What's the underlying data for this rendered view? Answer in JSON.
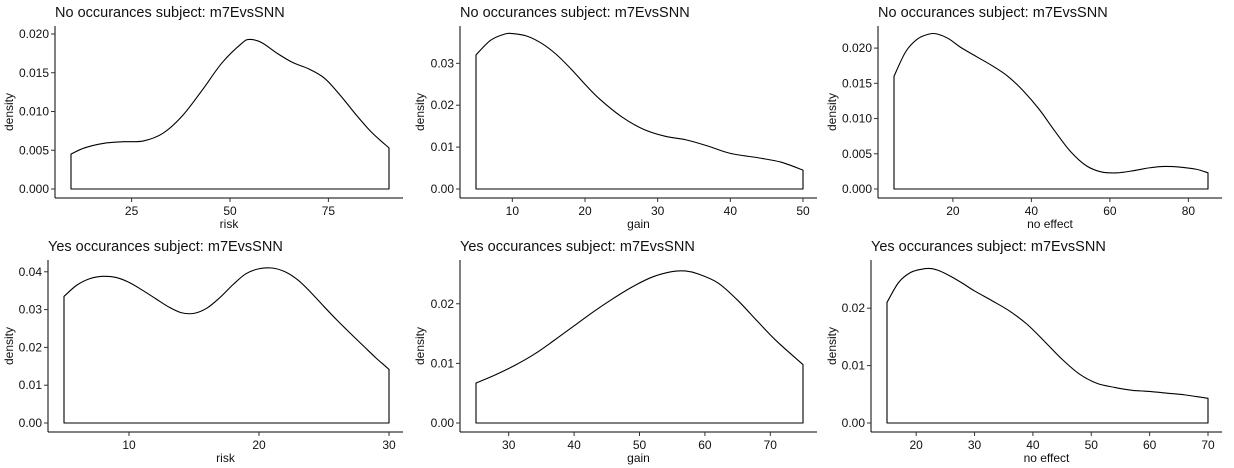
{
  "chart_data": [
    {
      "type": "area",
      "title": "No occurances subject:  m7EvsSNN",
      "xlabel": "risk",
      "ylabel": "density",
      "xlim": [
        9.6,
        90.4
      ],
      "ylim": [
        0,
        0.02
      ],
      "xticks": [
        25,
        50,
        75
      ],
      "yticks": [
        0.0,
        0.005,
        0.01,
        0.015,
        0.02
      ],
      "yticklabels": [
        "0.000",
        "0.005",
        "0.010",
        "0.015",
        "0.020"
      ],
      "x": [
        9.6,
        13,
        18,
        23,
        28,
        33,
        38,
        43,
        48,
        53,
        55,
        58,
        62,
        66,
        70,
        74,
        78,
        82,
        86,
        90.4
      ],
      "y": [
        0.0045,
        0.0053,
        0.0059,
        0.0061,
        0.0062,
        0.0072,
        0.0095,
        0.0128,
        0.0163,
        0.0188,
        0.0193,
        0.0189,
        0.0175,
        0.0163,
        0.0155,
        0.0143,
        0.0121,
        0.0096,
        0.0073,
        0.0053
      ],
      "grid": false
    },
    {
      "type": "area",
      "title": "No occurances subject:  m7EvsSNN",
      "xlabel": "gain",
      "ylabel": "density",
      "xlim": [
        5,
        50
      ],
      "ylim": [
        0,
        0.037
      ],
      "xticks": [
        10,
        20,
        30,
        40,
        50
      ],
      "yticks": [
        0.0,
        0.01,
        0.02,
        0.03
      ],
      "yticklabels": [
        "0.00",
        "0.01",
        "0.02",
        "0.03"
      ],
      "x": [
        5,
        7,
        9,
        10,
        12,
        14,
        16,
        18,
        20,
        22,
        25,
        28,
        31,
        34,
        37,
        40,
        44,
        47,
        50
      ],
      "y": [
        0.032,
        0.0355,
        0.037,
        0.0371,
        0.0365,
        0.0348,
        0.0322,
        0.0288,
        0.025,
        0.0215,
        0.0173,
        0.0143,
        0.0126,
        0.0117,
        0.0102,
        0.0085,
        0.0074,
        0.0064,
        0.0045
      ],
      "grid": false
    },
    {
      "type": "area",
      "title": "No occurances subject:  m7EvsSNN",
      "xlabel": "no effect",
      "ylabel": "density",
      "xlim": [
        5,
        85
      ],
      "ylim": [
        0,
        0.022
      ],
      "xticks": [
        20,
        40,
        60,
        80
      ],
      "yticks": [
        0.0,
        0.005,
        0.01,
        0.015,
        0.02
      ],
      "yticklabels": [
        "0.000",
        "0.005",
        "0.010",
        "0.015",
        "0.020"
      ],
      "x": [
        5,
        8,
        11,
        14,
        16,
        19,
        22,
        26,
        30,
        34,
        38,
        42,
        46,
        50,
        54,
        58,
        62,
        66,
        70,
        74,
        78,
        82,
        85
      ],
      "y": [
        0.016,
        0.0195,
        0.0213,
        0.022,
        0.022,
        0.0213,
        0.0201,
        0.0188,
        0.0175,
        0.016,
        0.0139,
        0.0113,
        0.0082,
        0.0053,
        0.0033,
        0.0024,
        0.0023,
        0.0026,
        0.003,
        0.0032,
        0.0031,
        0.0028,
        0.0023
      ],
      "grid": false
    },
    {
      "type": "area",
      "title": "Yes occurances subject:  m7EvsSNN",
      "xlabel": "risk",
      "ylabel": "density",
      "xlim": [
        5,
        30
      ],
      "ylim": [
        0,
        0.041
      ],
      "xticks": [
        10,
        20,
        30
      ],
      "yticks": [
        0.0,
        0.01,
        0.02,
        0.03,
        0.04
      ],
      "yticklabels": [
        "0.00",
        "0.01",
        "0.02",
        "0.03",
        "0.04"
      ],
      "x": [
        5,
        6,
        7,
        8,
        9,
        10,
        11,
        12,
        13,
        14,
        15,
        16,
        17,
        18,
        19,
        20,
        21,
        22,
        23,
        24,
        25,
        26,
        27,
        28,
        29,
        30
      ],
      "y": [
        0.0335,
        0.0365,
        0.0382,
        0.0388,
        0.0385,
        0.0372,
        0.0352,
        0.033,
        0.0308,
        0.0292,
        0.029,
        0.0304,
        0.0332,
        0.0366,
        0.0395,
        0.0408,
        0.041,
        0.04,
        0.0378,
        0.0345,
        0.0308,
        0.0272,
        0.0238,
        0.0205,
        0.0172,
        0.0142
      ],
      "grid": false
    },
    {
      "type": "area",
      "title": "Yes occurances subject:  m7EvsSNN",
      "xlabel": "gain",
      "ylabel": "density",
      "xlim": [
        25,
        75
      ],
      "ylim": [
        0,
        0.026
      ],
      "xticks": [
        30,
        40,
        50,
        60,
        70
      ],
      "yticks": [
        0.0,
        0.01,
        0.02
      ],
      "yticklabels": [
        "0.00",
        "0.01",
        "0.02"
      ],
      "x": [
        25,
        28,
        31,
        34,
        37,
        40,
        43,
        46,
        49,
        52,
        55,
        57,
        59,
        62,
        65,
        68,
        71,
        75
      ],
      "y": [
        0.0067,
        0.0081,
        0.0097,
        0.0116,
        0.0139,
        0.0163,
        0.0187,
        0.0209,
        0.0229,
        0.0245,
        0.0254,
        0.0255,
        0.025,
        0.0235,
        0.0206,
        0.0171,
        0.0137,
        0.0098
      ],
      "grid": false
    },
    {
      "type": "area",
      "title": "Yes occurances subject:  m7EvsSNN",
      "xlabel": "no effect",
      "ylabel": "density",
      "xlim": [
        15,
        70
      ],
      "ylim": [
        0,
        0.027
      ],
      "xticks": [
        20,
        30,
        40,
        50,
        60,
        70
      ],
      "yticks": [
        0.0,
        0.01,
        0.02
      ],
      "yticklabels": [
        "0.00",
        "0.01",
        "0.02"
      ],
      "x": [
        15,
        17,
        19,
        21,
        22.5,
        24,
        26,
        28,
        30,
        33,
        36,
        39,
        42,
        45,
        48,
        51,
        54,
        57,
        60,
        63,
        66,
        68,
        70
      ],
      "y": [
        0.021,
        0.0245,
        0.0262,
        0.0268,
        0.0269,
        0.0265,
        0.0255,
        0.0243,
        0.023,
        0.0213,
        0.0195,
        0.0172,
        0.0142,
        0.0111,
        0.0085,
        0.0069,
        0.0062,
        0.0057,
        0.0055,
        0.0052,
        0.0049,
        0.0046,
        0.0043
      ],
      "grid": false
    }
  ]
}
